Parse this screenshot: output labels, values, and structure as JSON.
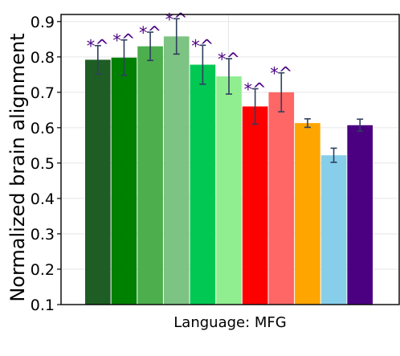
{
  "chart_data": {
    "type": "bar",
    "title": "",
    "xlabel": "Language: MFG",
    "ylabel": "Normalized brain alignment",
    "ylim": [
      0.1,
      0.92
    ],
    "yticks": [
      "0.1",
      "0.2",
      "0.3",
      "0.4",
      "0.5",
      "0.6",
      "0.7",
      "0.8",
      "0.9"
    ],
    "grid": true,
    "legend": "none",
    "bars": [
      {
        "value": 0.792,
        "err": 0.04,
        "color": "#1e5e24",
        "label": "*^"
      },
      {
        "value": 0.798,
        "err": 0.05,
        "color": "#008000",
        "label": "*^"
      },
      {
        "value": 0.83,
        "err": 0.04,
        "color": "#4cae4c",
        "label": "*^"
      },
      {
        "value": 0.858,
        "err": 0.05,
        "color": "#7dc383",
        "label": "*^"
      },
      {
        "value": 0.778,
        "err": 0.055,
        "color": "#00c853",
        "label": "*^"
      },
      {
        "value": 0.745,
        "err": 0.05,
        "color": "#90ee90",
        "label": "*^"
      },
      {
        "value": 0.66,
        "err": 0.05,
        "color": "#ff0000",
        "label": "*^"
      },
      {
        "value": 0.7,
        "err": 0.055,
        "color": "#ff6666",
        "label": "*^"
      },
      {
        "value": 0.613,
        "err": 0.012,
        "color": "#ffa500",
        "label": ""
      },
      {
        "value": 0.522,
        "err": 0.02,
        "color": "#87ceeb",
        "label": ""
      },
      {
        "value": 0.607,
        "err": 0.017,
        "color": "#4b0082",
        "label": ""
      }
    ],
    "sig_color": "#4b0082",
    "errorbar_color": "#2f3f5f"
  }
}
